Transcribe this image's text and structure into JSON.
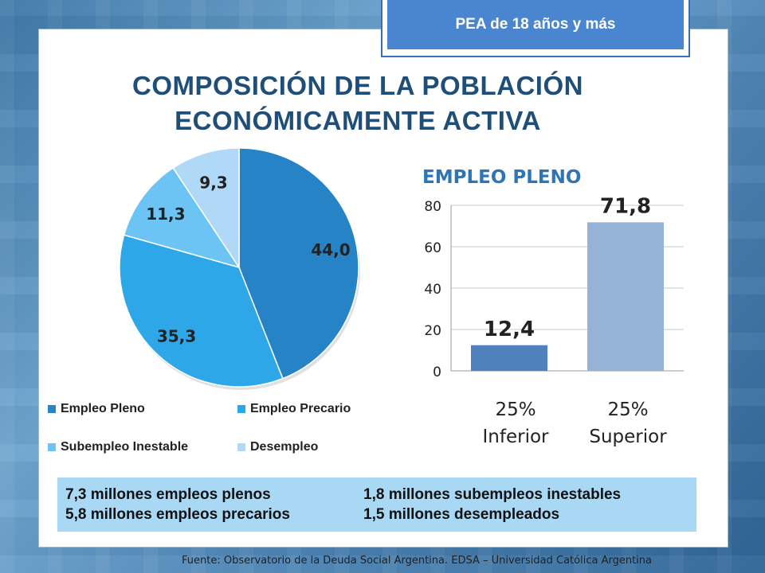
{
  "tag": "PEA de 18 años y más",
  "title_line1": "COMPOSICIÓN DE LA POBLACIÓN",
  "title_line2": "ECONÓMICAMENTE ACTIVA",
  "chart_data": [
    {
      "type": "pie",
      "labels": [
        "Empleo Pleno",
        "Empleo Precario",
        "Subempleo Inestable",
        "Desempleo"
      ],
      "values": [
        44.0,
        35.3,
        11.3,
        9.3
      ],
      "value_labels": [
        "44,0",
        "35,3",
        "11,3",
        "9,3"
      ],
      "colors": [
        "#2683c6",
        "#2da7e8",
        "#6cc4f5",
        "#b0d8f7"
      ],
      "legend_position": "bottom"
    },
    {
      "type": "bar",
      "title": "EMPLEO PLENO",
      "categories": [
        [
          "25%",
          "Inferior"
        ],
        [
          "25%",
          "Superior"
        ]
      ],
      "values": [
        12.4,
        71.8
      ],
      "value_labels": [
        "12,4",
        "71,8"
      ],
      "colors": [
        "#4f81bd",
        "#95b3d7"
      ],
      "ylim": [
        0,
        80
      ],
      "yticks": [
        "0",
        "20",
        "40",
        "60",
        "80"
      ],
      "grid": true
    }
  ],
  "summary": {
    "left": [
      "7,3 millones empleos plenos",
      "5,8 millones empleos precarios"
    ],
    "right": [
      "1,8 millones subempleos inestables",
      "1,5 millones desempleados"
    ]
  },
  "footer": "Fuente:  Observatorio de  la Deuda Social Argentina. EDSA  – Universidad Católica Argentina"
}
